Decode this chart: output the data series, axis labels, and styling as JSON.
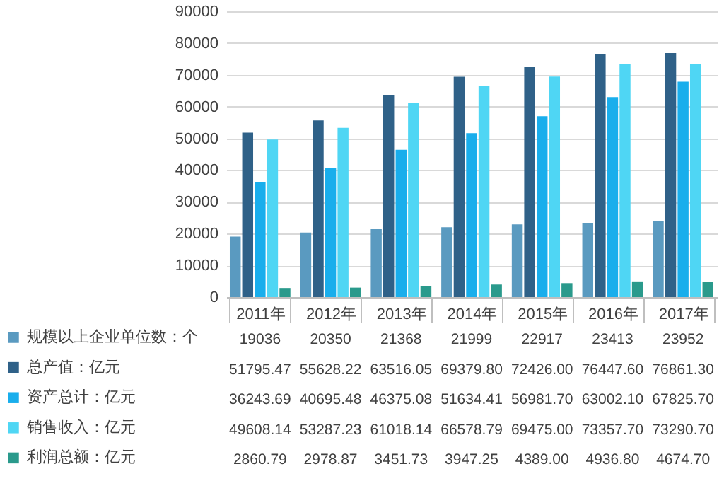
{
  "chart_data": {
    "type": "bar",
    "categories": [
      "2011年",
      "2012年",
      "2013年",
      "2014年",
      "2015年",
      "2016年",
      "2017年"
    ],
    "ylim": [
      0,
      90000
    ],
    "yticks": [
      0,
      10000,
      20000,
      30000,
      40000,
      50000,
      60000,
      70000,
      80000,
      90000
    ],
    "grid": "y",
    "legend": "bottom left",
    "series": [
      {
        "name": "规模以上企业单位数：个",
        "color": "#5a9ac0",
        "values": [
          19036,
          20350,
          21368,
          21999,
          22917,
          23413,
          23952
        ],
        "value_labels": [
          "19036",
          "20350",
          "21368",
          "21999",
          "22917",
          "23413",
          "23952"
        ]
      },
      {
        "name": "总产值：亿元",
        "color": "#2f6188",
        "values": [
          51795.47,
          55628.22,
          63516.05,
          69379.8,
          72426,
          76447.6,
          76861.3
        ],
        "value_labels": [
          "51795.47",
          "55628.22",
          "63516.05",
          "69379.80",
          "72426.00",
          "76447.60",
          "76861.30"
        ]
      },
      {
        "name": "资产总计：亿元",
        "color": "#19aeec",
        "values": [
          36243.69,
          40695.48,
          46375.08,
          51634.41,
          56981.7,
          63002.1,
          67825.7
        ],
        "value_labels": [
          "36243.69",
          "40695.48",
          "46375.08",
          "51634.41",
          "56981.70",
          "63002.10",
          "67825.70"
        ]
      },
      {
        "name": "销售收入：亿元",
        "color": "#4fd6f4",
        "values": [
          49608.14,
          53287.23,
          61018.14,
          66578.79,
          69475,
          73357.7,
          73290.7
        ],
        "value_labels": [
          "49608.14",
          "53287.23",
          "61018.14",
          "66578.79",
          "69475.00",
          "73357.70",
          "73290.70"
        ]
      },
      {
        "name": "利润总额：亿元",
        "color": "#2a9a8c",
        "values": [
          2860.79,
          2978.87,
          3451.73,
          3947.25,
          4389,
          4936.8,
          4674.7
        ],
        "value_labels": [
          "2860.79",
          "2978.87",
          "3451.73",
          "3947.25",
          "4389.00",
          "4936.80",
          "4674.70"
        ]
      }
    ]
  }
}
